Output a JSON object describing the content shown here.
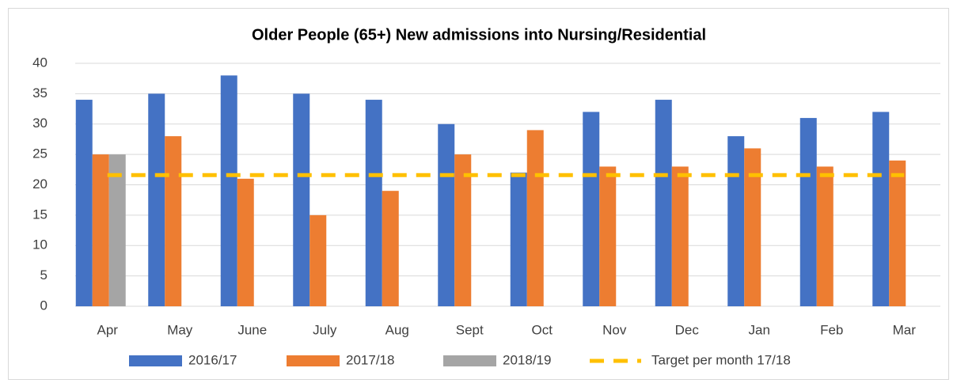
{
  "chart_data": {
    "type": "bar",
    "title": "Older People (65+) New admissions into Nursing/Residential",
    "categories": [
      "Apr",
      "May",
      "June",
      "July",
      "Aug",
      "Sept",
      "Oct",
      "Nov",
      "Dec",
      "Jan",
      "Feb",
      "Mar"
    ],
    "series": [
      {
        "name": "2016/17",
        "color": "#4472c4",
        "values": [
          34,
          35,
          38,
          35,
          34,
          30,
          22,
          32,
          34,
          28,
          31,
          32
        ]
      },
      {
        "name": "2017/18",
        "color": "#ed7d31",
        "values": [
          25,
          28,
          21,
          15,
          19,
          25,
          29,
          23,
          23,
          26,
          23,
          24
        ]
      },
      {
        "name": "2018/19",
        "color": "#a5a5a5",
        "values": [
          25,
          null,
          null,
          null,
          null,
          null,
          null,
          null,
          null,
          null,
          null,
          null
        ]
      },
      {
        "name": "Target per month 17/18",
        "color": "#ffc000",
        "type": "line",
        "dashed": true,
        "values": [
          21.6,
          21.6,
          21.6,
          21.6,
          21.6,
          21.6,
          21.6,
          21.6,
          21.6,
          21.6,
          21.6,
          21.6
        ]
      }
    ],
    "ylim": [
      0,
      40
    ],
    "yticks": [
      0,
      5,
      10,
      15,
      20,
      25,
      30,
      35,
      40
    ],
    "grid": true,
    "legend": "bottom"
  }
}
